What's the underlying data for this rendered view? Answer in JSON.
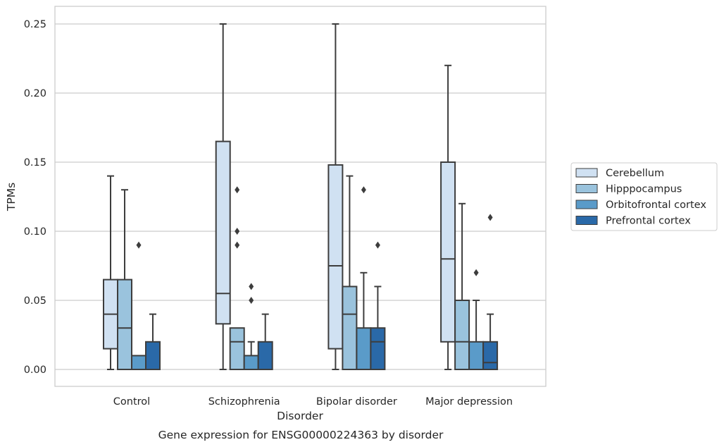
{
  "chart_data": {
    "type": "boxplot",
    "caption": "Gene expression for ENSG00000224363 by disorder",
    "xlabel": "Disorder",
    "ylabel": "TPMs",
    "ylim": [
      -0.012,
      0.263
    ],
    "yticks": [
      0.0,
      0.05,
      0.1,
      0.15,
      0.2,
      0.25
    ],
    "ytick_labels": [
      "0.00",
      "0.05",
      "0.10",
      "0.15",
      "0.20",
      "0.25"
    ],
    "grid": true,
    "legend_position": "right",
    "categories": [
      "Control",
      "Schizophrenia",
      "Bipolar disorder",
      "Major depression"
    ],
    "series": [
      {
        "name": "Cerebellum",
        "color": "#d0e1f2",
        "boxes": [
          {
            "whisker_low": 0.0,
            "q1": 0.015,
            "median": 0.04,
            "q3": 0.065,
            "whisker_high": 0.14,
            "outliers": []
          },
          {
            "whisker_low": 0.0,
            "q1": 0.033,
            "median": 0.055,
            "q3": 0.165,
            "whisker_high": 0.25,
            "outliers": []
          },
          {
            "whisker_low": 0.0,
            "q1": 0.015,
            "median": 0.075,
            "q3": 0.148,
            "whisker_high": 0.25,
            "outliers": []
          },
          {
            "whisker_low": 0.0,
            "q1": 0.02,
            "median": 0.08,
            "q3": 0.15,
            "whisker_high": 0.22,
            "outliers": []
          }
        ]
      },
      {
        "name": "Hipppocampus",
        "color": "#9ac3dd",
        "boxes": [
          {
            "whisker_low": 0.0,
            "q1": 0.0,
            "median": 0.03,
            "q3": 0.065,
            "whisker_high": 0.13,
            "outliers": []
          },
          {
            "whisker_low": 0.0,
            "q1": 0.0,
            "median": 0.02,
            "q3": 0.03,
            "whisker_high": 0.03,
            "outliers": [
              0.13,
              0.1,
              0.09
            ]
          },
          {
            "whisker_low": 0.0,
            "q1": 0.0,
            "median": 0.04,
            "q3": 0.06,
            "whisker_high": 0.14,
            "outliers": []
          },
          {
            "whisker_low": 0.0,
            "q1": 0.0,
            "median": 0.02,
            "q3": 0.05,
            "whisker_high": 0.12,
            "outliers": []
          }
        ]
      },
      {
        "name": "Orbitofrontal cortex",
        "color": "#5a9bc9",
        "boxes": [
          {
            "whisker_low": 0.0,
            "q1": 0.0,
            "median": 0.0,
            "q3": 0.01,
            "whisker_high": 0.01,
            "outliers": [
              0.09
            ]
          },
          {
            "whisker_low": 0.0,
            "q1": 0.0,
            "median": 0.0,
            "q3": 0.01,
            "whisker_high": 0.02,
            "outliers": [
              0.06,
              0.05
            ]
          },
          {
            "whisker_low": 0.0,
            "q1": 0.0,
            "median": 0.0,
            "q3": 0.03,
            "whisker_high": 0.07,
            "outliers": [
              0.13
            ]
          },
          {
            "whisker_low": 0.0,
            "q1": 0.0,
            "median": 0.0,
            "q3": 0.02,
            "whisker_high": 0.05,
            "outliers": [
              0.07
            ]
          }
        ]
      },
      {
        "name": "Prefrontal cortex",
        "color": "#2a69a8",
        "boxes": [
          {
            "whisker_low": 0.0,
            "q1": 0.0,
            "median": 0.0,
            "q3": 0.02,
            "whisker_high": 0.04,
            "outliers": []
          },
          {
            "whisker_low": 0.0,
            "q1": 0.0,
            "median": 0.0,
            "q3": 0.02,
            "whisker_high": 0.04,
            "outliers": []
          },
          {
            "whisker_low": 0.0,
            "q1": 0.0,
            "median": 0.02,
            "q3": 0.03,
            "whisker_high": 0.06,
            "outliers": [
              0.09
            ]
          },
          {
            "whisker_low": 0.0,
            "q1": 0.0,
            "median": 0.005,
            "q3": 0.02,
            "whisker_high": 0.04,
            "outliers": [
              0.11
            ]
          }
        ]
      }
    ]
  }
}
